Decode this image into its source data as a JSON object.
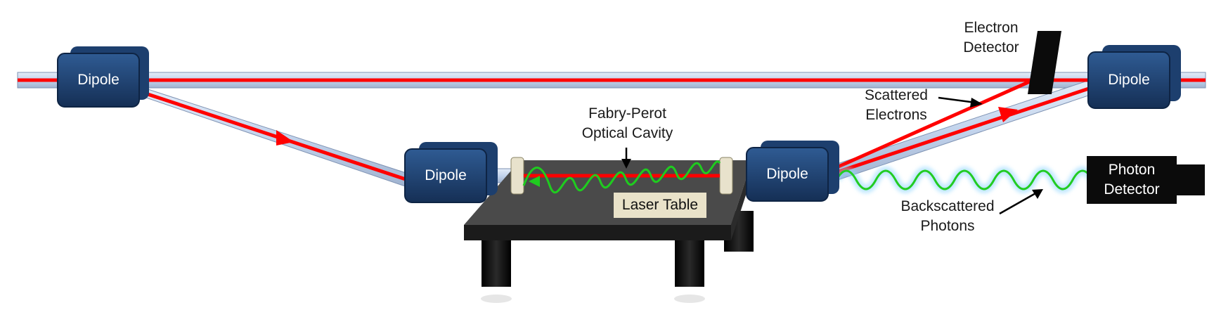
{
  "diagram": {
    "dipoles": [
      {
        "label": "Dipole"
      },
      {
        "label": "Dipole"
      },
      {
        "label": "Dipole"
      },
      {
        "label": "Dipole"
      }
    ],
    "electron_detector": {
      "label_line1": "Electron",
      "label_line2": "Detector"
    },
    "scattered_electrons": {
      "label_line1": "Scattered",
      "label_line2": "Electrons"
    },
    "fabry_perot": {
      "label_line1": "Fabry-Perot",
      "label_line2": "Optical Cavity"
    },
    "laser_table": {
      "label": "Laser Table"
    },
    "photon_detector": {
      "label_line1": "Photon",
      "label_line2": "Detector"
    },
    "backscattered_photons": {
      "label_line1": "Backscattered",
      "label_line2": "Photons"
    },
    "colors": {
      "beam_pipe": "#c9d8ee",
      "electron_beam": "#ff0000",
      "laser": "#22cc22",
      "dipole": "#1d3f6e",
      "detector": "#0b0b0b",
      "table": "#3a3a3a"
    }
  }
}
